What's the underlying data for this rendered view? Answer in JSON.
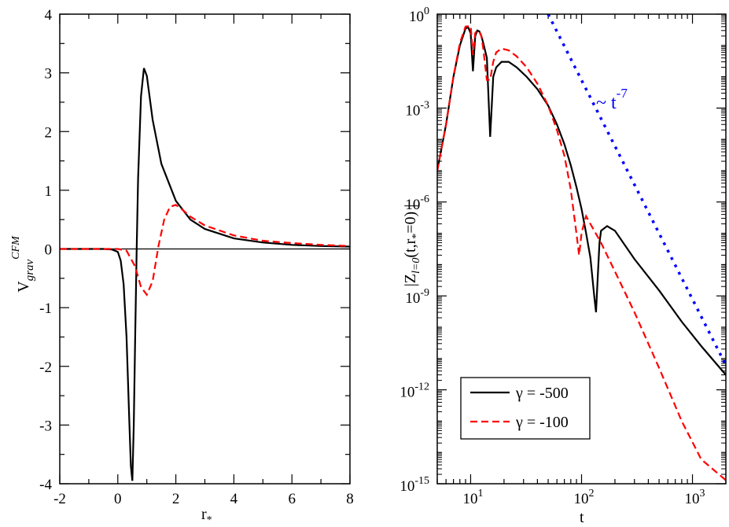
{
  "colors": {
    "black": "#000000",
    "red": "#ff0000",
    "blue": "#0000ff"
  },
  "chart_data": [
    {
      "type": "line",
      "panel": "left",
      "xlim": [
        -2,
        8
      ],
      "ylim": [
        -4,
        4
      ],
      "xticks": [
        -2,
        0,
        2,
        4,
        6,
        8
      ],
      "yticks": [
        -4,
        -3,
        -2,
        -1,
        0,
        1,
        2,
        3,
        4
      ],
      "xlabel": "r",
      "xlabel_sub": "*",
      "ylabel": "V",
      "ylabel_sub": "grav",
      "ylabel_sup": "CFM",
      "zero_line": true,
      "series": [
        {
          "name": "γ = -500",
          "color": "#000000",
          "style": "solid",
          "x": [
            -2,
            -1,
            -0.5,
            -0.2,
            0,
            0.1,
            0.2,
            0.3,
            0.4,
            0.45,
            0.5,
            0.55,
            0.6,
            0.65,
            0.7,
            0.8,
            0.9,
            1.0,
            1.2,
            1.5,
            2.0,
            2.5,
            3,
            4,
            5,
            6,
            7,
            8
          ],
          "y": [
            0,
            0,
            0,
            -0.01,
            -0.05,
            -0.2,
            -0.6,
            -1.5,
            -3.0,
            -3.7,
            -3.95,
            -3.0,
            -1.5,
            0,
            1.2,
            2.6,
            3.08,
            2.95,
            2.2,
            1.45,
            0.82,
            0.5,
            0.34,
            0.18,
            0.11,
            0.07,
            0.05,
            0.04
          ]
        },
        {
          "name": "γ = -100",
          "color": "#ff0000",
          "style": "dashed",
          "x": [
            -2,
            -1,
            -0.5,
            0,
            0.3,
            0.6,
            0.8,
            1.0,
            1.2,
            1.4,
            1.6,
            1.8,
            2.0,
            2.2,
            2.5,
            3,
            4,
            5,
            6,
            7,
            8
          ],
          "y": [
            0,
            0,
            0,
            0,
            -0.03,
            -0.3,
            -0.65,
            -0.78,
            -0.55,
            0.05,
            0.5,
            0.72,
            0.75,
            0.68,
            0.55,
            0.4,
            0.23,
            0.14,
            0.1,
            0.07,
            0.05
          ]
        }
      ]
    },
    {
      "type": "line",
      "panel": "right",
      "xscale": "log",
      "yscale": "log",
      "xlim": [
        5,
        2000
      ],
      "ylim": [
        1e-15,
        1
      ],
      "xtick_labels": [
        {
          "base": "10",
          "exp": "1",
          "value": 10
        },
        {
          "base": "10",
          "exp": "2",
          "value": 100
        },
        {
          "base": "10",
          "exp": "3",
          "value": 1000
        }
      ],
      "ytick_labels": [
        {
          "base": "10",
          "exp": "0",
          "value": 1
        },
        {
          "base": "10",
          "exp": "-3",
          "value": 0.001
        },
        {
          "base": "10",
          "exp": "-6",
          "value": 1e-06
        },
        {
          "base": "10",
          "exp": "-9",
          "value": 1e-09
        },
        {
          "base": "10",
          "exp": "-12",
          "value": 1e-12
        },
        {
          "base": "10",
          "exp": "-15",
          "value": 1e-15
        }
      ],
      "xlabel": "t",
      "ylabel_parts": {
        "open": "|Z",
        "sub": "l=0",
        "mid": "(t,r",
        "sub2": "*",
        "close": "=0) |"
      },
      "annotation": {
        "prefix": "~ t",
        "sup": "-7"
      },
      "legend": {
        "position": "bottom-left",
        "entries": [
          {
            "label": "γ = -500",
            "color": "#000000",
            "style": "solid"
          },
          {
            "label": "γ = -100",
            "color": "#ff0000",
            "style": "dashed"
          }
        ]
      },
      "series": [
        {
          "name": "γ = -500",
          "color": "#000000",
          "style": "solid",
          "x": [
            5,
            6,
            7,
            8,
            9,
            9.5,
            10,
            10.5,
            11,
            11.5,
            12,
            12.5,
            13,
            14,
            15,
            16,
            17,
            19,
            22,
            26,
            32,
            40,
            50,
            60,
            70,
            80,
            90,
            100,
            110,
            120,
            130,
            135,
            140,
            145,
            150,
            170,
            200,
            300,
            500,
            800,
            1200,
            2000
          ],
          "y": [
            1e-05,
            0.0003,
            0.01,
            0.1,
            0.35,
            0.38,
            0.25,
            0.015,
            0.2,
            0.3,
            0.28,
            0.2,
            0.12,
            0.04,
            0.00012,
            0.01,
            0.02,
            0.03,
            0.03,
            0.02,
            0.01,
            0.004,
            0.0012,
            0.0003,
            7e-05,
            1.5e-05,
            3e-06,
            6e-07,
            1e-07,
            1.7e-08,
            1e-09,
            3e-10,
            4e-09,
            5e-08,
            1.2e-07,
            1.7e-07,
            1.2e-07,
            1.5e-08,
            1.5e-09,
            1.5e-10,
            2.5e-11,
            3e-12
          ]
        },
        {
          "name": "γ = -100",
          "color": "#ff0000",
          "style": "dashed",
          "x": [
            5,
            6,
            7,
            8,
            9,
            10,
            10.5,
            11,
            11.5,
            12,
            12.5,
            13,
            14,
            15,
            16,
            17,
            19,
            22,
            26,
            32,
            40,
            50,
            60,
            70,
            80,
            90,
            95,
            100,
            105,
            110,
            120,
            150,
            200,
            300,
            500,
            800,
            1200,
            2000
          ],
          "y": [
            1e-05,
            0.0003,
            0.01,
            0.12,
            0.4,
            0.42,
            0.05,
            0.25,
            0.3,
            0.27,
            0.2,
            0.08,
            0.008,
            0.008,
            0.03,
            0.06,
            0.08,
            0.07,
            0.045,
            0.02,
            0.006,
            0.0012,
            0.0002,
            3e-05,
            2.5e-06,
            1e-07,
            2e-08,
            1e-07,
            2e-07,
            3.5e-07,
            2e-07,
            5e-08,
            6e-09,
            3e-10,
            5e-12,
            1e-13,
            6e-15,
            1.3e-15
          ]
        },
        {
          "name": "~ t^-7",
          "color": "#0000ff",
          "style": "dotted",
          "x": [
            50,
            2000
          ],
          "y": [
            1,
            6.1e-12
          ]
        }
      ]
    }
  ]
}
